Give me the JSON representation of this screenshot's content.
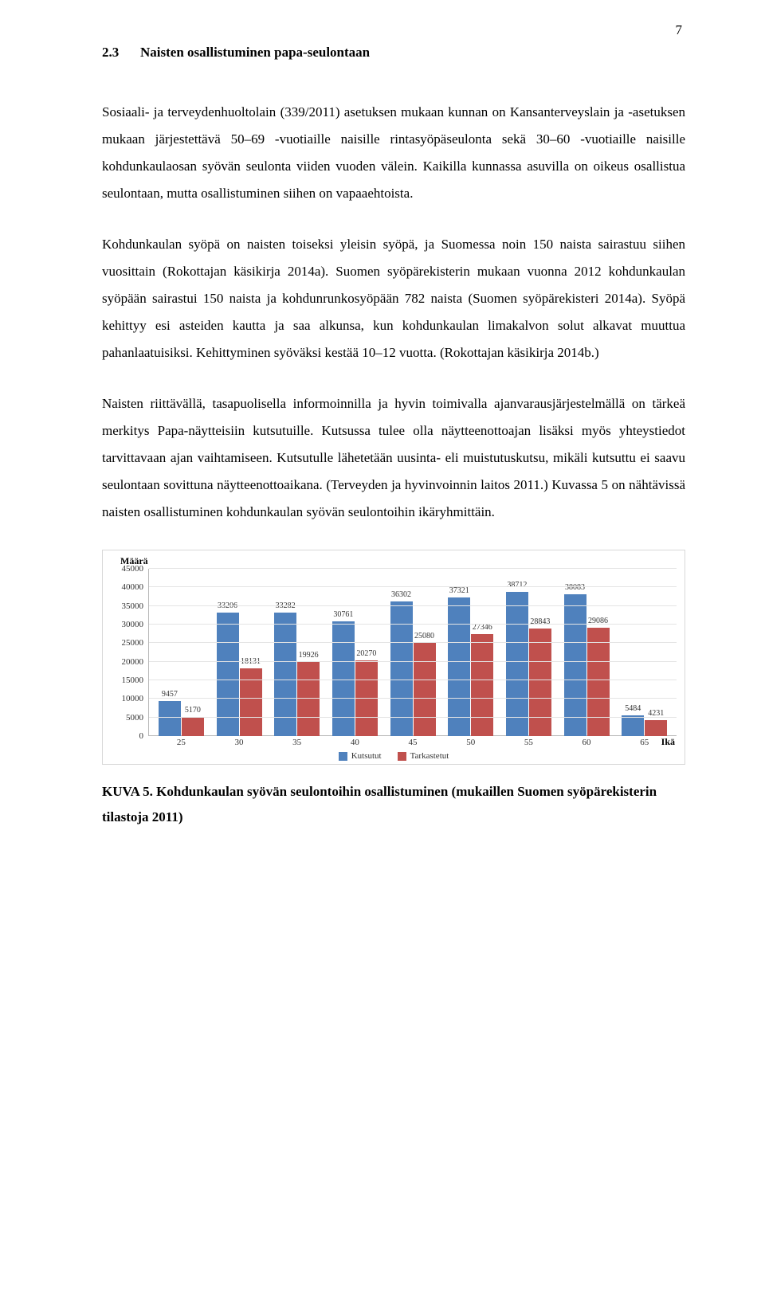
{
  "page_number": "7",
  "heading": {
    "number": "2.3",
    "title": "Naisten osallistuminen papa-seulontaan"
  },
  "paragraphs": {
    "p1": "Sosiaali- ja terveydenhuoltolain (339/2011) asetuksen mukaan kunnan on Kansanterveyslain ja -asetuksen mukaan järjestettävä 50–69 -vuotiaille naisille rintasyöpäseulonta sekä 30–60 -vuotiaille naisille kohdunkaulaosan syövän seulonta viiden vuoden välein. Kaikilla kunnassa asuvilla on oikeus osallistua seulontaan, mutta osallistuminen siihen on vapaaehtoista.",
    "p2": "Kohdunkaulan syöpä on naisten toiseksi yleisin syöpä, ja Suomessa noin 150 naista sairastuu siihen vuosittain (Rokottajan käsikirja 2014a). Suomen syöpärekisterin mukaan vuonna 2012 kohdunkaulan syöpään sairastui 150 naista ja kohdunrunkosyöpään 782 naista (Suomen syöpärekisteri 2014a). Syöpä kehittyy esi asteiden kautta ja saa alkunsa, kun kohdunkaulan limakalvon solut alkavat muuttua pahanlaatuisiksi. Kehittyminen syöväksi kestää 10–12 vuotta. (Rokottajan käsikirja 2014b.)",
    "p3": "Naisten riittävällä, tasapuolisella informoinnilla ja hyvin toimivalla ajanvarausjärjestelmällä on tärkeä merkitys Papa-näytteisiin kutsutuille. Kutsussa tulee olla näytteenottoajan lisäksi myös yhteystiedot tarvittavaan ajan vaihtamiseen. Kutsutulle lähetetään uusinta- eli muistutuskutsu, mikäli kutsuttu ei saavu seulontaan sovittuna näytteenottoaikana. (Terveyden ja hyvinvoinnin laitos 2011.) Kuvassa 5 on nähtävissä naisten osallistuminen kohdunkaulan syövän seulontoihin ikäryhmittäin."
  },
  "chart": {
    "type": "bar",
    "ylabel": "Määrä",
    "xlabel": "Ikä",
    "ymax": 45000,
    "ytick_step": 5000,
    "grid_color": "#e4e4e4",
    "axis_color": "#b8b8b8",
    "background_color": "#ffffff",
    "label_fontsize": 11,
    "categories": [
      "25",
      "30",
      "35",
      "40",
      "45",
      "50",
      "55",
      "60",
      "65"
    ],
    "series": [
      {
        "name": "Kutsutut",
        "color": "#4f81bd",
        "values": [
          9457,
          33206,
          33282,
          30761,
          36302,
          37321,
          38712,
          38083,
          5484
        ]
      },
      {
        "name": "Tarkastetut",
        "color": "#c0504d",
        "values": [
          5170,
          18131,
          19926,
          20270,
          25080,
          27346,
          28843,
          29086,
          4231
        ]
      }
    ]
  },
  "caption": {
    "lead": "KUVA 5. Kohdunkaulan syövän seulontoihin osallistuminen (mukaillen Suomen syöpärekisterin tilastoja 2011)"
  }
}
